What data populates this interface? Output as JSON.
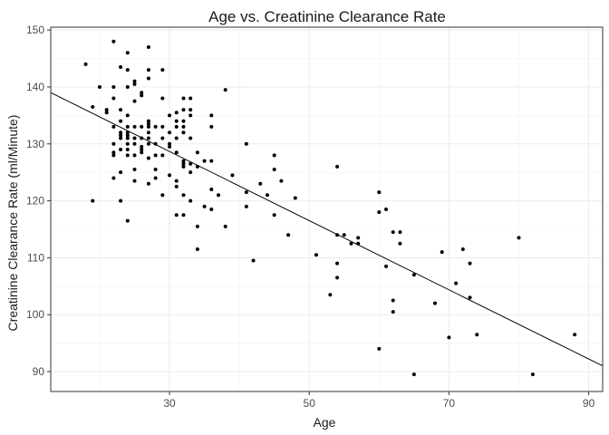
{
  "chart_data": {
    "type": "scatter",
    "title": "Age vs. Creatinine Clearance Rate",
    "xlabel": "Age",
    "ylabel": "Creatinine Clearance Rate (ml/Minute)",
    "xlim": [
      13,
      92
    ],
    "ylim": [
      86.5,
      150.5
    ],
    "xticks": [
      30,
      50,
      70,
      90
    ],
    "yticks": [
      90,
      100,
      110,
      120,
      130,
      140,
      150
    ],
    "grid": true,
    "regression_line": {
      "x": [
        13,
        92
      ],
      "y": [
        139,
        91
      ]
    },
    "points": [
      [
        18,
        144
      ],
      [
        19,
        136.5
      ],
      [
        19,
        120
      ],
      [
        20,
        140
      ],
      [
        21,
        136
      ],
      [
        21,
        135.5
      ],
      [
        22,
        148
      ],
      [
        22,
        140
      ],
      [
        22,
        138
      ],
      [
        22,
        133
      ],
      [
        22,
        130
      ],
      [
        22,
        128.5
      ],
      [
        22,
        128
      ],
      [
        22,
        124
      ],
      [
        23,
        143.5
      ],
      [
        23,
        136
      ],
      [
        23,
        134
      ],
      [
        23,
        132
      ],
      [
        23,
        131.5
      ],
      [
        23,
        131
      ],
      [
        23,
        129
      ],
      [
        23,
        125
      ],
      [
        23,
        120
      ],
      [
        24,
        146
      ],
      [
        24,
        143
      ],
      [
        24,
        140
      ],
      [
        24,
        135
      ],
      [
        24,
        133
      ],
      [
        24,
        132
      ],
      [
        24,
        131.5
      ],
      [
        24,
        131
      ],
      [
        24,
        130
      ],
      [
        24,
        129
      ],
      [
        24,
        128
      ],
      [
        24,
        116.5
      ],
      [
        25,
        141
      ],
      [
        25,
        140.5
      ],
      [
        25,
        137.5
      ],
      [
        25,
        133
      ],
      [
        25,
        131
      ],
      [
        25,
        130
      ],
      [
        25,
        128
      ],
      [
        25,
        125.5
      ],
      [
        25,
        123.5
      ],
      [
        26,
        139
      ],
      [
        26,
        138.5
      ],
      [
        26,
        133
      ],
      [
        26,
        131
      ],
      [
        26,
        129.5
      ],
      [
        26,
        129
      ],
      [
        26,
        128.5
      ],
      [
        27,
        147
      ],
      [
        27,
        143
      ],
      [
        27,
        141.5
      ],
      [
        27,
        134
      ],
      [
        27,
        133.5
      ],
      [
        27,
        133
      ],
      [
        27,
        132
      ],
      [
        27,
        131
      ],
      [
        27,
        130
      ],
      [
        27,
        127.5
      ],
      [
        27,
        123
      ],
      [
        28,
        133
      ],
      [
        28,
        130
      ],
      [
        28,
        128
      ],
      [
        28,
        125.5
      ],
      [
        28,
        124
      ],
      [
        29,
        143
      ],
      [
        29,
        138
      ],
      [
        29,
        133
      ],
      [
        29,
        131
      ],
      [
        29,
        128
      ],
      [
        29,
        121
      ],
      [
        30,
        135
      ],
      [
        30,
        132
      ],
      [
        30,
        130
      ],
      [
        30,
        129.5
      ],
      [
        30,
        124.5
      ],
      [
        31,
        135.5
      ],
      [
        31,
        134
      ],
      [
        31,
        133
      ],
      [
        31,
        131
      ],
      [
        31,
        128.5
      ],
      [
        31,
        123.5
      ],
      [
        31,
        122.5
      ],
      [
        31,
        117.5
      ],
      [
        32,
        138
      ],
      [
        32,
        136
      ],
      [
        32,
        134
      ],
      [
        32,
        133
      ],
      [
        32,
        132
      ],
      [
        32,
        127
      ],
      [
        32,
        126.5
      ],
      [
        32,
        126
      ],
      [
        32,
        121
      ],
      [
        32,
        117.5
      ],
      [
        33,
        138
      ],
      [
        33,
        136
      ],
      [
        33,
        135
      ],
      [
        33,
        131
      ],
      [
        33,
        126.5
      ],
      [
        33,
        125
      ],
      [
        33,
        120
      ],
      [
        34,
        128.5
      ],
      [
        34,
        126
      ],
      [
        34,
        115.5
      ],
      [
        34,
        111.5
      ],
      [
        35,
        127
      ],
      [
        35,
        119
      ],
      [
        36,
        135
      ],
      [
        36,
        133
      ],
      [
        36,
        127
      ],
      [
        36,
        122
      ],
      [
        36,
        118.5
      ],
      [
        37,
        121
      ],
      [
        38,
        139.5
      ],
      [
        38,
        115.5
      ],
      [
        39,
        124.5
      ],
      [
        41,
        130
      ],
      [
        41,
        121.5
      ],
      [
        41,
        119
      ],
      [
        42,
        109.5
      ],
      [
        43,
        123
      ],
      [
        44,
        121
      ],
      [
        45,
        128
      ],
      [
        45,
        125.5
      ],
      [
        45,
        117.5
      ],
      [
        46,
        123.5
      ],
      [
        47,
        114
      ],
      [
        48,
        120.5
      ],
      [
        51,
        110.5
      ],
      [
        53,
        103.5
      ],
      [
        54,
        126
      ],
      [
        54,
        114
      ],
      [
        54,
        109
      ],
      [
        54,
        106.5
      ],
      [
        55,
        114
      ],
      [
        56,
        112.5
      ],
      [
        57,
        113.5
      ],
      [
        57,
        112.5
      ],
      [
        60,
        121.5
      ],
      [
        60,
        118
      ],
      [
        60,
        94
      ],
      [
        61,
        118.5
      ],
      [
        61,
        108.5
      ],
      [
        62,
        114.5
      ],
      [
        62,
        102.5
      ],
      [
        62,
        100.5
      ],
      [
        63,
        114.5
      ],
      [
        63,
        112.5
      ],
      [
        65,
        107
      ],
      [
        65,
        89.5
      ],
      [
        68,
        102
      ],
      [
        69,
        111
      ],
      [
        70,
        96
      ],
      [
        71,
        105.5
      ],
      [
        72,
        111.5
      ],
      [
        73,
        109
      ],
      [
        73,
        103
      ],
      [
        74,
        96.5
      ],
      [
        80,
        113.5
      ],
      [
        82,
        89.5
      ],
      [
        88,
        96.5
      ]
    ]
  }
}
